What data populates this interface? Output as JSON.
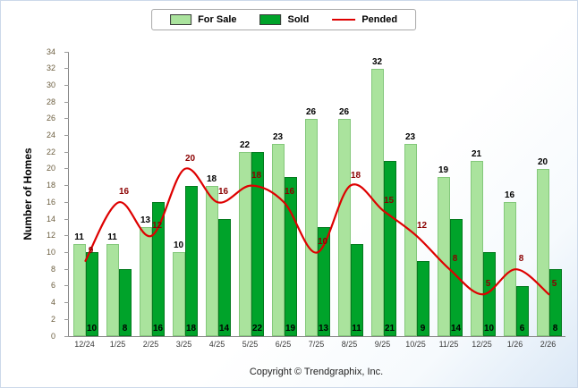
{
  "legend": {
    "items": [
      {
        "label": "For Sale",
        "type": "box"
      },
      {
        "label": "Sold",
        "type": "box"
      },
      {
        "label": "Pended",
        "type": "line"
      }
    ]
  },
  "footer": {
    "copyright": "Copyright © Trendgraphix, Inc."
  },
  "chart_data": {
    "type": "bar",
    "title": "",
    "xlabel": "",
    "ylabel": "Number of Homes",
    "ylim": [
      0,
      34
    ],
    "ytick_step": 2,
    "grid": false,
    "legend_position": "top",
    "categories": [
      "12/24",
      "1/25",
      "2/25",
      "3/25",
      "4/25",
      "5/25",
      "6/25",
      "7/25",
      "8/25",
      "9/25",
      "10/25",
      "11/25",
      "12/25",
      "1/26",
      "2/26"
    ],
    "series": [
      {
        "name": "For Sale",
        "type": "bar",
        "color": "#AAE39D",
        "border": "#84C87B",
        "values": [
          11,
          11,
          13,
          10,
          18,
          22,
          23,
          26,
          26,
          32,
          23,
          19,
          21,
          16,
          20
        ]
      },
      {
        "name": "Sold",
        "type": "bar",
        "color": "#00A32A",
        "border": "#047A1F",
        "values": [
          10,
          8,
          16,
          18,
          14,
          22,
          19,
          13,
          11,
          21,
          9,
          14,
          10,
          6,
          8
        ]
      },
      {
        "name": "Pended",
        "type": "line",
        "color": "#DE0000",
        "label_color": "#8B0000",
        "values": [
          9,
          16,
          12,
          20,
          16,
          18,
          16,
          10,
          18,
          15,
          12,
          8,
          5,
          8,
          5
        ]
      }
    ]
  }
}
